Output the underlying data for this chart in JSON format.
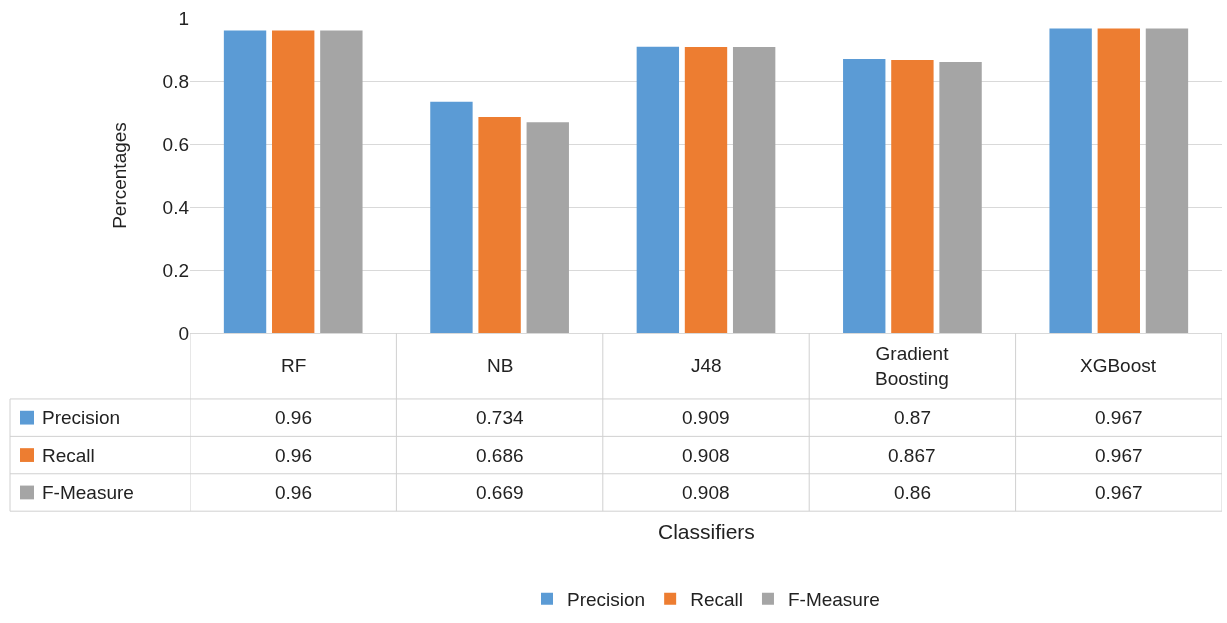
{
  "chart_data": {
    "type": "bar",
    "annotations": [
      "Classifiers"
    ],
    "ylabel": "Percentages",
    "categories": [
      "RF",
      "NB",
      "J48",
      "Gradient Boosting",
      "XGBoost"
    ],
    "series": [
      {
        "name": "Precision",
        "color": "#5b9bd5",
        "values": [
          0.96,
          0.734,
          0.909,
          0.87,
          0.967
        ]
      },
      {
        "name": "Recall",
        "color": "#ed7d31",
        "values": [
          0.96,
          0.686,
          0.908,
          0.867,
          0.967
        ]
      },
      {
        "name": "F-Measure",
        "color": "#a5a5a5",
        "values": [
          0.96,
          0.669,
          0.908,
          0.86,
          0.967
        ]
      }
    ],
    "ylim": [
      0,
      1
    ],
    "yticks": [
      0,
      0.2,
      0.4,
      0.6,
      0.8,
      1
    ],
    "grid": "y",
    "legend": "bottom",
    "data_labels": true
  }
}
